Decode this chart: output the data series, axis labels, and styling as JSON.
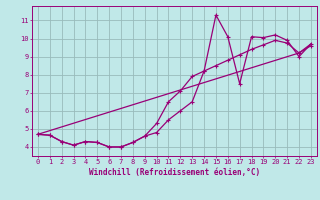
{
  "xlabel": "Windchill (Refroidissement éolien,°C)",
  "bg_color": "#c0e8e8",
  "line_color": "#990077",
  "grid_color": "#99bbbb",
  "xlim": [
    -0.5,
    23.5
  ],
  "ylim": [
    3.5,
    11.8
  ],
  "yticks": [
    4,
    5,
    6,
    7,
    8,
    9,
    10,
    11
  ],
  "xticks": [
    0,
    1,
    2,
    3,
    4,
    5,
    6,
    7,
    8,
    9,
    10,
    11,
    12,
    13,
    14,
    15,
    16,
    17,
    18,
    19,
    20,
    21,
    22,
    23
  ],
  "line1_x": [
    0,
    1,
    2,
    3,
    4,
    5,
    6,
    7,
    8,
    9,
    10,
    11,
    12,
    13,
    14,
    15,
    16,
    17,
    18,
    19,
    20,
    21,
    22,
    23
  ],
  "line1_y": [
    4.7,
    4.65,
    4.3,
    4.1,
    4.3,
    4.25,
    4.0,
    4.0,
    4.25,
    4.6,
    4.8,
    5.5,
    6.0,
    6.5,
    8.2,
    11.3,
    10.1,
    7.5,
    10.1,
    10.05,
    10.2,
    9.9,
    9.0,
    9.7
  ],
  "line2_x": [
    0,
    1,
    2,
    3,
    4,
    5,
    6,
    7,
    8,
    9,
    10,
    11,
    12,
    13,
    14,
    15,
    16,
    17,
    18,
    19,
    20,
    21,
    22,
    23
  ],
  "line2_y": [
    4.7,
    4.65,
    4.3,
    4.1,
    4.3,
    4.25,
    4.0,
    4.0,
    4.25,
    4.6,
    5.3,
    6.5,
    7.1,
    7.9,
    8.2,
    8.5,
    8.8,
    9.1,
    9.4,
    9.65,
    9.9,
    9.75,
    9.2,
    9.6
  ],
  "line3_x": [
    0,
    22,
    23
  ],
  "line3_y": [
    4.7,
    9.2,
    9.7
  ]
}
